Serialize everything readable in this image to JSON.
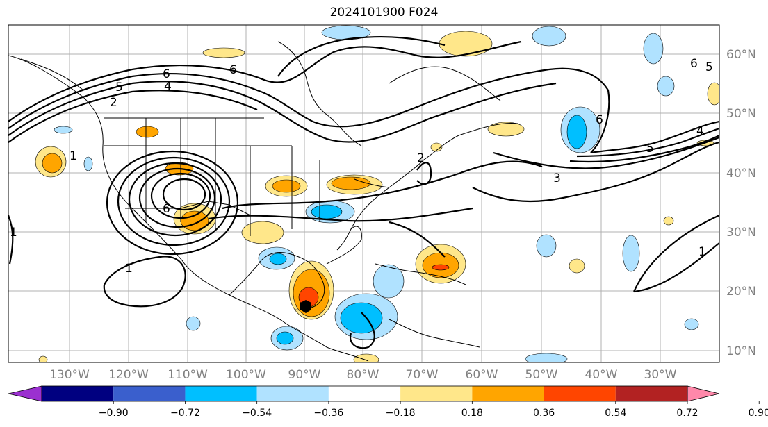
{
  "title": "2024101900 F024",
  "lon_labels": [
    "130°W",
    "120°W",
    "110°W",
    "100°W",
    "90°W",
    "80°W",
    "70°W",
    "60°W",
    "50°W",
    "40°W",
    "30°W"
  ],
  "lat_labels": [
    "60°N",
    "50°N",
    "40°N",
    "30°N",
    "20°N",
    "10°N"
  ],
  "colorbar": {
    "ticks": [
      "−0.90",
      "−0.72",
      "−0.54",
      "−0.36",
      "−0.18",
      "0.18",
      "0.36",
      "0.54",
      "0.72",
      "0.90"
    ],
    "colors": [
      "#9b30d0",
      "#000080",
      "#3a5fcd",
      "#00bfff",
      "#b0e2ff",
      "#ffffff",
      "#ffe78a",
      "#ffa500",
      "#ff4500",
      "#b22222",
      "#ff88aa"
    ]
  },
  "contour_labels": [
    "6",
    "5",
    "4",
    "2",
    "1",
    "1",
    "6",
    "1",
    "3",
    "5",
    "4",
    "6",
    "6",
    "5",
    "1",
    "2",
    "6"
  ]
}
